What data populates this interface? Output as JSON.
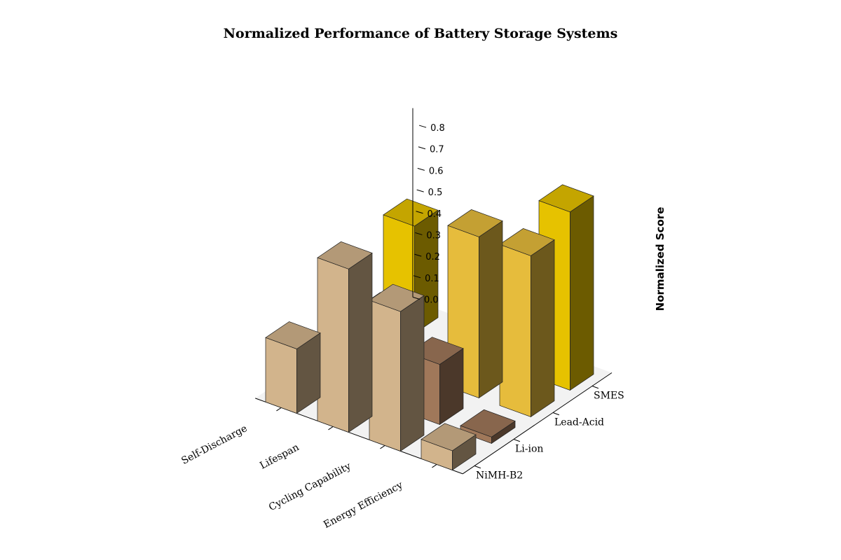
{
  "chart_data": {
    "type": "bar3d",
    "title": "Normalized Performance of Battery Storage Systems",
    "zlabel": "Normalized Score",
    "metrics": [
      "Self-Discharge",
      "Lifespan",
      "Cycling Capability",
      "Energy Efficiency"
    ],
    "systems": [
      "NiMH-B2",
      "Li-ion",
      "Lead-Acid",
      "SMES"
    ],
    "values": [
      [
        0.3,
        0.15,
        0.0,
        0.5
      ],
      [
        0.76,
        0.4,
        0.0,
        0.0
      ],
      [
        0.65,
        0.28,
        0.75,
        0.12
      ],
      [
        0.09,
        0.03,
        0.75,
        0.83
      ]
    ],
    "zticks": [
      0.0,
      0.1,
      0.2,
      0.3,
      0.4,
      0.5,
      0.6,
      0.7,
      0.8
    ],
    "zlim": [
      0,
      0.88
    ],
    "colors": {
      "NiMH-B2": "#d2b48c",
      "Li-ion": "#a0785a",
      "Lead-Acid": "#e6bc3c",
      "SMES": "#e6c200"
    }
  }
}
